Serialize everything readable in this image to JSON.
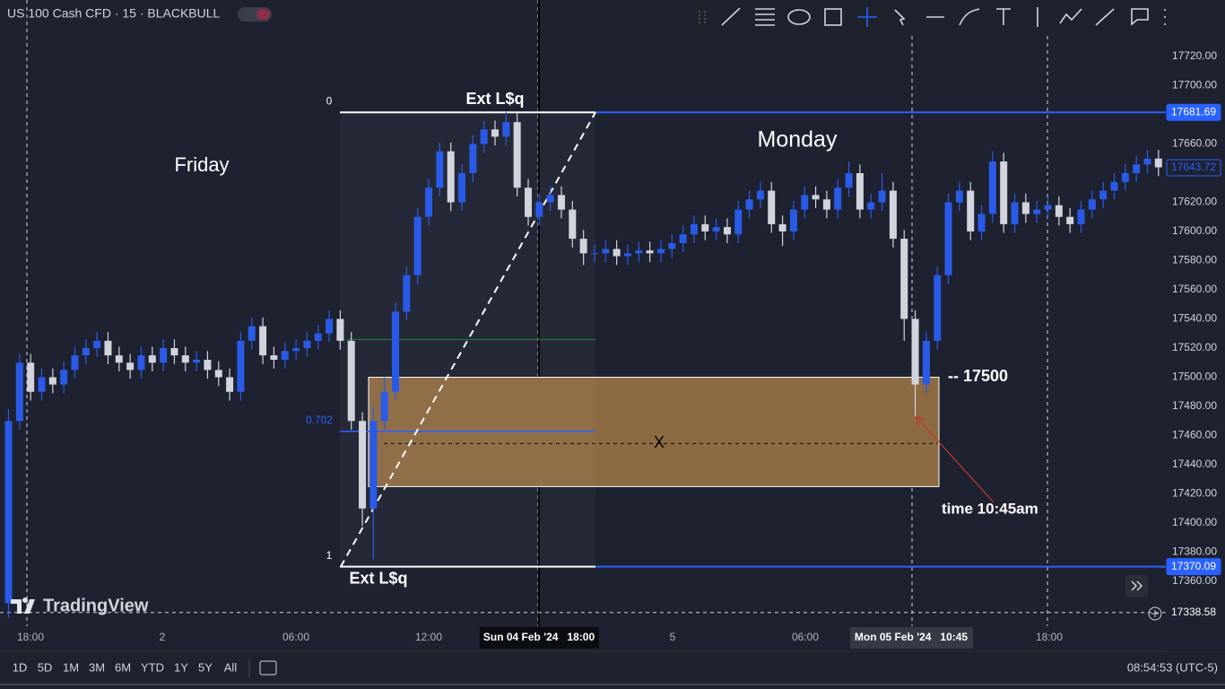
{
  "header": {
    "symbol": "US 100 Cash CFD · 15 · BLACKBULL",
    "logo": "TradingView"
  },
  "chart_data": {
    "type": "candlestick",
    "ylim": [
      17329.23,
      17758.77
    ],
    "yticks": [
      {
        "value": 17720,
        "label": "17720.00"
      },
      {
        "value": 17700,
        "label": "17700.00"
      },
      {
        "value": 17660,
        "label": "17660.00"
      },
      {
        "value": 17620,
        "label": "17620.00"
      },
      {
        "value": 17600,
        "label": "17600.00"
      },
      {
        "value": 17580,
        "label": "17580.00"
      },
      {
        "value": 17560,
        "label": "17560.00"
      },
      {
        "value": 17540,
        "label": "17540.00"
      },
      {
        "value": 17520,
        "label": "17520.00"
      },
      {
        "value": 17500,
        "label": "17500.00"
      },
      {
        "value": 17480,
        "label": "17480.00"
      },
      {
        "value": 17460,
        "label": "17460.00"
      },
      {
        "value": 17440,
        "label": "17440.00"
      },
      {
        "value": 17420,
        "label": "17420.00"
      },
      {
        "value": 17400,
        "label": "17400.00"
      },
      {
        "value": 17380,
        "label": "17380.00"
      },
      {
        "value": 17360,
        "label": "17360.00"
      }
    ],
    "xtick_labels": [
      "18:00",
      "2",
      "06:00",
      "12:00",
      "5",
      "06:00",
      "18:00"
    ],
    "highlighted_times": [
      "Sun 04 Feb '24   18:00",
      "Mon 05 Feb '24   10:45"
    ],
    "up_color": "#2a5be8",
    "down_color": "#d1d4dc",
    "candles": {
      "open": [
        17345,
        17470,
        17510,
        17490,
        17500,
        17495,
        17505,
        17515,
        17520,
        17525,
        17515,
        17510,
        17505,
        17515,
        17510,
        17520,
        17515,
        17510,
        17512,
        17505,
        17500,
        17490,
        17525,
        17535,
        17515,
        17512,
        17518,
        17520,
        17525,
        17530,
        17540,
        17525,
        17470,
        17410,
        17470,
        17490,
        17545,
        17570,
        17610,
        17630,
        17655,
        17620,
        17640,
        17660,
        17670,
        17665,
        17675,
        17630,
        17610,
        17620,
        17625,
        17615,
        17595,
        17585,
        17585,
        17588,
        17583,
        17585,
        17587,
        17585,
        17588,
        17592,
        17598,
        17605,
        17600,
        17603,
        17598,
        17615,
        17622,
        17628,
        17605,
        17600,
        17615,
        17625,
        17622,
        17615,
        17630,
        17640,
        17615,
        17620,
        17628,
        17595,
        17540,
        17495,
        17525,
        17570,
        17620,
        17628,
        17600,
        17612,
        17648,
        17605,
        17620,
        17612,
        17615,
        17618,
        17610,
        17605,
        17615,
        17622,
        17628,
        17634,
        17640,
        17646,
        17650
      ],
      "high": [
        17478,
        17516,
        17516,
        17506,
        17506,
        17511,
        17521,
        17526,
        17531,
        17531,
        17521,
        17516,
        17521,
        17521,
        17526,
        17526,
        17521,
        17518,
        17518,
        17511,
        17506,
        17531,
        17541,
        17541,
        17521,
        17524,
        17526,
        17531,
        17536,
        17546,
        17546,
        17531,
        17476,
        17480,
        17500,
        17551,
        17576,
        17616,
        17636,
        17661,
        17661,
        17646,
        17666,
        17676,
        17676,
        17682,
        17681,
        17636,
        17626,
        17631,
        17631,
        17621,
        17601,
        17591,
        17594,
        17594,
        17591,
        17593,
        17593,
        17594,
        17598,
        17604,
        17611,
        17611,
        17609,
        17609,
        17621,
        17628,
        17634,
        17634,
        17611,
        17621,
        17631,
        17631,
        17628,
        17636,
        17648,
        17646,
        17626,
        17640,
        17634,
        17601,
        17546,
        17531,
        17576,
        17626,
        17634,
        17634,
        17618,
        17655,
        17654,
        17626,
        17626,
        17621,
        17624,
        17624,
        17616,
        17621,
        17628,
        17634,
        17640,
        17646,
        17652,
        17656,
        17656
      ],
      "low": [
        17335,
        17464,
        17484,
        17484,
        17489,
        17489,
        17499,
        17509,
        17514,
        17509,
        17504,
        17499,
        17499,
        17504,
        17504,
        17509,
        17504,
        17504,
        17499,
        17494,
        17484,
        17484,
        17519,
        17509,
        17506,
        17506,
        17512,
        17514,
        17519,
        17524,
        17519,
        17464,
        17398,
        17375,
        17464,
        17484,
        17539,
        17564,
        17604,
        17624,
        17614,
        17614,
        17634,
        17654,
        17659,
        17659,
        17624,
        17604,
        17604,
        17614,
        17609,
        17589,
        17577,
        17579,
        17579,
        17577,
        17577,
        17579,
        17579,
        17579,
        17582,
        17586,
        17592,
        17594,
        17594,
        17592,
        17592,
        17609,
        17616,
        17599,
        17590,
        17594,
        17609,
        17616,
        17609,
        17609,
        17624,
        17609,
        17609,
        17614,
        17589,
        17525,
        17473,
        17489,
        17519,
        17564,
        17614,
        17594,
        17594,
        17606,
        17599,
        17599,
        17606,
        17606,
        17609,
        17604,
        17599,
        17599,
        17609,
        17616,
        17622,
        17628,
        17634,
        17640,
        17638
      ],
      "close": [
        17470,
        17510,
        17490,
        17500,
        17495,
        17505,
        17515,
        17520,
        17525,
        17515,
        17510,
        17505,
        17515,
        17510,
        17520,
        17515,
        17510,
        17512,
        17505,
        17500,
        17490,
        17525,
        17535,
        17515,
        17512,
        17518,
        17520,
        17525,
        17530,
        17540,
        17525,
        17470,
        17410,
        17470,
        17490,
        17545,
        17570,
        17610,
        17630,
        17655,
        17620,
        17640,
        17660,
        17670,
        17665,
        17675,
        17630,
        17610,
        17620,
        17625,
        17615,
        17595,
        17585,
        17585,
        17588,
        17583,
        17585,
        17587,
        17585,
        17588,
        17592,
        17598,
        17605,
        17600,
        17603,
        17598,
        17615,
        17622,
        17628,
        17605,
        17600,
        17615,
        17625,
        17622,
        17615,
        17630,
        17640,
        17615,
        17620,
        17628,
        17595,
        17540,
        17495,
        17525,
        17570,
        17620,
        17628,
        17600,
        17612,
        17648,
        17605,
        17620,
        17612,
        17615,
        17618,
        17610,
        17605,
        17615,
        17622,
        17628,
        17634,
        17640,
        17646,
        17650,
        17644
      ]
    },
    "fib": {
      "top": 17681.69,
      "bottom": 17370.09,
      "top_label": "0",
      "bottom_label": "1",
      "level": 0.702,
      "level_label": "0.702",
      "mid_level": 0.5,
      "top_text": "Ext L$q",
      "bottom_text": "Ext L$q"
    },
    "zone": {
      "top": 17500,
      "bottom": 17425,
      "label": "X",
      "level_text": "-- 17500"
    },
    "day_labels": [
      "Friday",
      "Monday"
    ],
    "note": "time 10:45am",
    "price_labels": {
      "fib_top": 17681.69,
      "last": 17643.72,
      "fib_bottom": 17370.09,
      "crosshair": 17338.58
    }
  },
  "bottom_bar": {
    "ranges": [
      "1D",
      "5D",
      "1M",
      "3M",
      "6M",
      "YTD",
      "1Y",
      "5Y",
      "All"
    ],
    "clock": "08:54:53 (UTC-5)"
  }
}
